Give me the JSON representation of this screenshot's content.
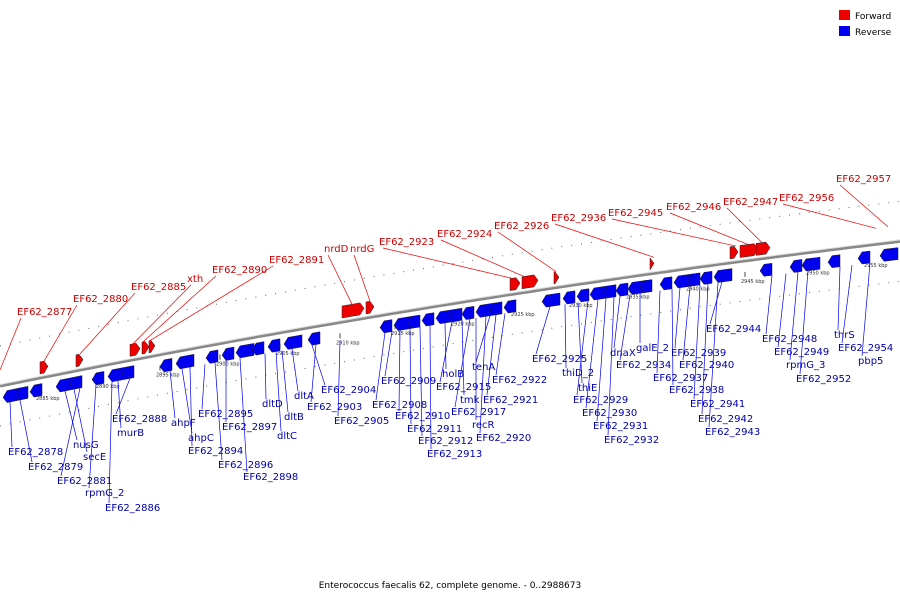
{
  "caption": "Enterococcus faecalis 62, complete genome. - 0..2988673",
  "legend": [
    {
      "label": "Forward",
      "color": "#ee0000"
    },
    {
      "label": "Reverse",
      "color": "#0000ee"
    }
  ],
  "colors": {
    "forward": "#ee0000",
    "reverse": "#0000ee",
    "backbone": "#888888"
  },
  "ticks": [
    "2885 kbp",
    "2890 kbp",
    "2895 kbp",
    "2900 kbp",
    "2905 kbp",
    "2910 kbp",
    "2915 kbp",
    "2920 kbp",
    "2925 kbp",
    "2930 kbp",
    "2935 kbp",
    "2940 kbp",
    "2945 kbp",
    "2950 kbp",
    "2955 kbp"
  ],
  "forward_labels": [
    "EF62_2877",
    "EF62_2880",
    "EF62_2885",
    "xth",
    "EF62_2890",
    "EF62_2891",
    "nrdD",
    "nrdG",
    "EF62_2923",
    "EF62_2924",
    "EF62_2926",
    "EF62_2936",
    "EF62_2945",
    "EF62_2946",
    "EF62_2947",
    "EF62_2956",
    "EF62_2957"
  ],
  "reverse_labels": [
    "EF62_2878",
    "EF62_2879",
    "nusG",
    "secE",
    "EF62_2881",
    "rpmG_2",
    "EF62_2886",
    "murB",
    "EF62_2888",
    "ahpF",
    "ahpC",
    "EF62_2894",
    "EF62_2895",
    "EF62_2896",
    "EF62_2897",
    "EF62_2898",
    "dltD",
    "dltC",
    "dltB",
    "dltA",
    "EF62_2904",
    "EF62_2903",
    "EF62_2905",
    "EF62_2908",
    "EF62_2909",
    "EF62_2910",
    "EF62_2911",
    "EF62_2912",
    "EF62_2913",
    "holB",
    "EF62_2915",
    "tmk",
    "EF62_2917",
    "recR",
    "EF62_2920",
    "tenA",
    "EF62_2921",
    "EF62_2922",
    "EF62_2925",
    "thiD_2",
    "thiE",
    "EF62_2929",
    "EF62_2930",
    "EF62_2931",
    "EF62_2932",
    "dnaX",
    "EF62_2934",
    "galE_2",
    "EF62_2937",
    "EF62_2938",
    "EF62_2939",
    "EF62_2940",
    "EF62_2941",
    "EF62_2942",
    "EF62_2943",
    "EF62_2944",
    "EF62_2948",
    "EF62_2949",
    "rpmG_3",
    "EF62_2952",
    "thrS",
    "EF62_2954",
    "pbp5"
  ]
}
